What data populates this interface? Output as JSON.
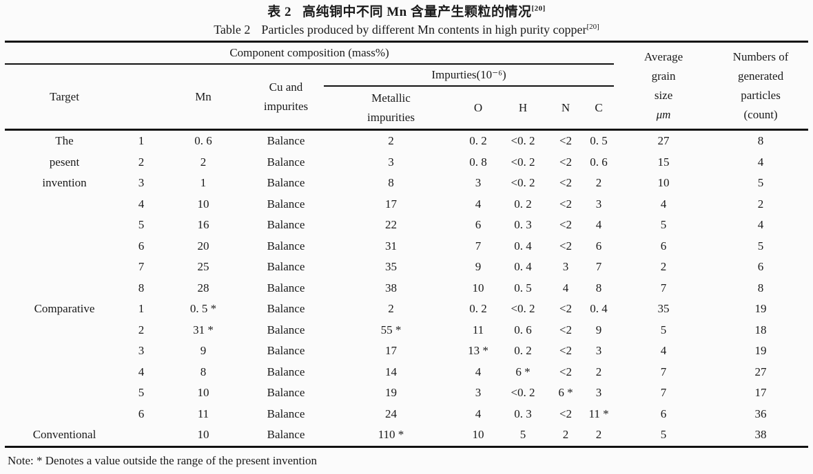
{
  "page": {
    "title_zh_label": "表 2",
    "title_zh_text": "高纯铜中不同 Mn 含量产生颗粒的情况",
    "title_zh_sup": "[20]",
    "title_en_label": "Table 2",
    "title_en_text": "Particles produced by different Mn contents in high purity copper",
    "title_en_sup": "[20]",
    "note": "Note: *  Denotes a value outside the range of the present invention"
  },
  "table": {
    "headers": {
      "component_composition": "Component composition (mass%)",
      "impurities_group": "Impurties(10⁻⁶)",
      "target": "Target",
      "row_no": "",
      "mn": "Mn",
      "cu": "Cu and\nimpurites",
      "metallic": "Metallic\nimpurities",
      "o": "O",
      "h": "H",
      "n": "N",
      "c": "C",
      "avg_grain_lines": "Average\ngrain\nsize",
      "avg_grain_unit": "μm",
      "numbers_lines": "Numbers of\ngenerated\nparticles\n(count)"
    },
    "rows": [
      {
        "target": "The",
        "no": "1",
        "mn": "0. 6",
        "cu": "Balance",
        "metallic": "2",
        "o": "0. 2",
        "h": "<0. 2",
        "n": "<2",
        "c": "0. 5",
        "size": "27",
        "count": "8"
      },
      {
        "target": "pesent",
        "no": "2",
        "mn": "2",
        "cu": "Balance",
        "metallic": "3",
        "o": "0. 8",
        "h": "<0. 2",
        "n": "<2",
        "c": "0. 6",
        "size": "15",
        "count": "4"
      },
      {
        "target": "invention",
        "no": "3",
        "mn": "1",
        "cu": "Balance",
        "metallic": "8",
        "o": "3",
        "h": "<0. 2",
        "n": "<2",
        "c": "2",
        "size": "10",
        "count": "5"
      },
      {
        "target": "",
        "no": "4",
        "mn": "10",
        "cu": "Balance",
        "metallic": "17",
        "o": "4",
        "h": "0. 2",
        "n": "<2",
        "c": "3",
        "size": "4",
        "count": "2"
      },
      {
        "target": "",
        "no": "5",
        "mn": "16",
        "cu": "Balance",
        "metallic": "22",
        "o": "6",
        "h": "0. 3",
        "n": "<2",
        "c": "4",
        "size": "5",
        "count": "4"
      },
      {
        "target": "",
        "no": "6",
        "mn": "20",
        "cu": "Balance",
        "metallic": "31",
        "o": "7",
        "h": "0. 4",
        "n": "<2",
        "c": "6",
        "size": "6",
        "count": "5"
      },
      {
        "target": "",
        "no": "7",
        "mn": "25",
        "cu": "Balance",
        "metallic": "35",
        "o": "9",
        "h": "0. 4",
        "n": "3",
        "c": "7",
        "size": "2",
        "count": "6"
      },
      {
        "target": "",
        "no": "8",
        "mn": "28",
        "cu": "Balance",
        "metallic": "38",
        "o": "10",
        "h": "0. 5",
        "n": "4",
        "c": "8",
        "size": "7",
        "count": "8"
      },
      {
        "target": "Comparative",
        "no": "1",
        "mn": "0. 5 *",
        "cu": "Balance",
        "metallic": "2",
        "o": "0. 2",
        "h": "<0. 2",
        "n": "<2",
        "c": "0. 4",
        "size": "35",
        "count": "19"
      },
      {
        "target": "",
        "no": "2",
        "mn": "31 *",
        "cu": "Balance",
        "metallic": "55 *",
        "o": "11",
        "h": "0. 6",
        "n": "<2",
        "c": "9",
        "size": "5",
        "count": "18"
      },
      {
        "target": "",
        "no": "3",
        "mn": "9",
        "cu": "Balance",
        "metallic": "17",
        "o": "13 *",
        "h": "0. 2",
        "n": "<2",
        "c": "3",
        "size": "4",
        "count": "19"
      },
      {
        "target": "",
        "no": "4",
        "mn": "8",
        "cu": "Balance",
        "metallic": "14",
        "o": "4",
        "h": "6 *",
        "n": "<2",
        "c": "2",
        "size": "7",
        "count": "27"
      },
      {
        "target": "",
        "no": "5",
        "mn": "10",
        "cu": "Balance",
        "metallic": "19",
        "o": "3",
        "h": "<0. 2",
        "n": "6 *",
        "c": "3",
        "size": "7",
        "count": "17"
      },
      {
        "target": "",
        "no": "6",
        "mn": "11",
        "cu": "Balance",
        "metallic": "24",
        "o": "4",
        "h": "0. 3",
        "n": "<2",
        "c": "11 *",
        "size": "6",
        "count": "36"
      },
      {
        "target": "Conventional",
        "no": "",
        "mn": "10",
        "cu": "Balance",
        "metallic": "110 *",
        "o": "10",
        "h": "5",
        "n": "2",
        "c": "2",
        "size": "5",
        "count": "38"
      }
    ]
  }
}
